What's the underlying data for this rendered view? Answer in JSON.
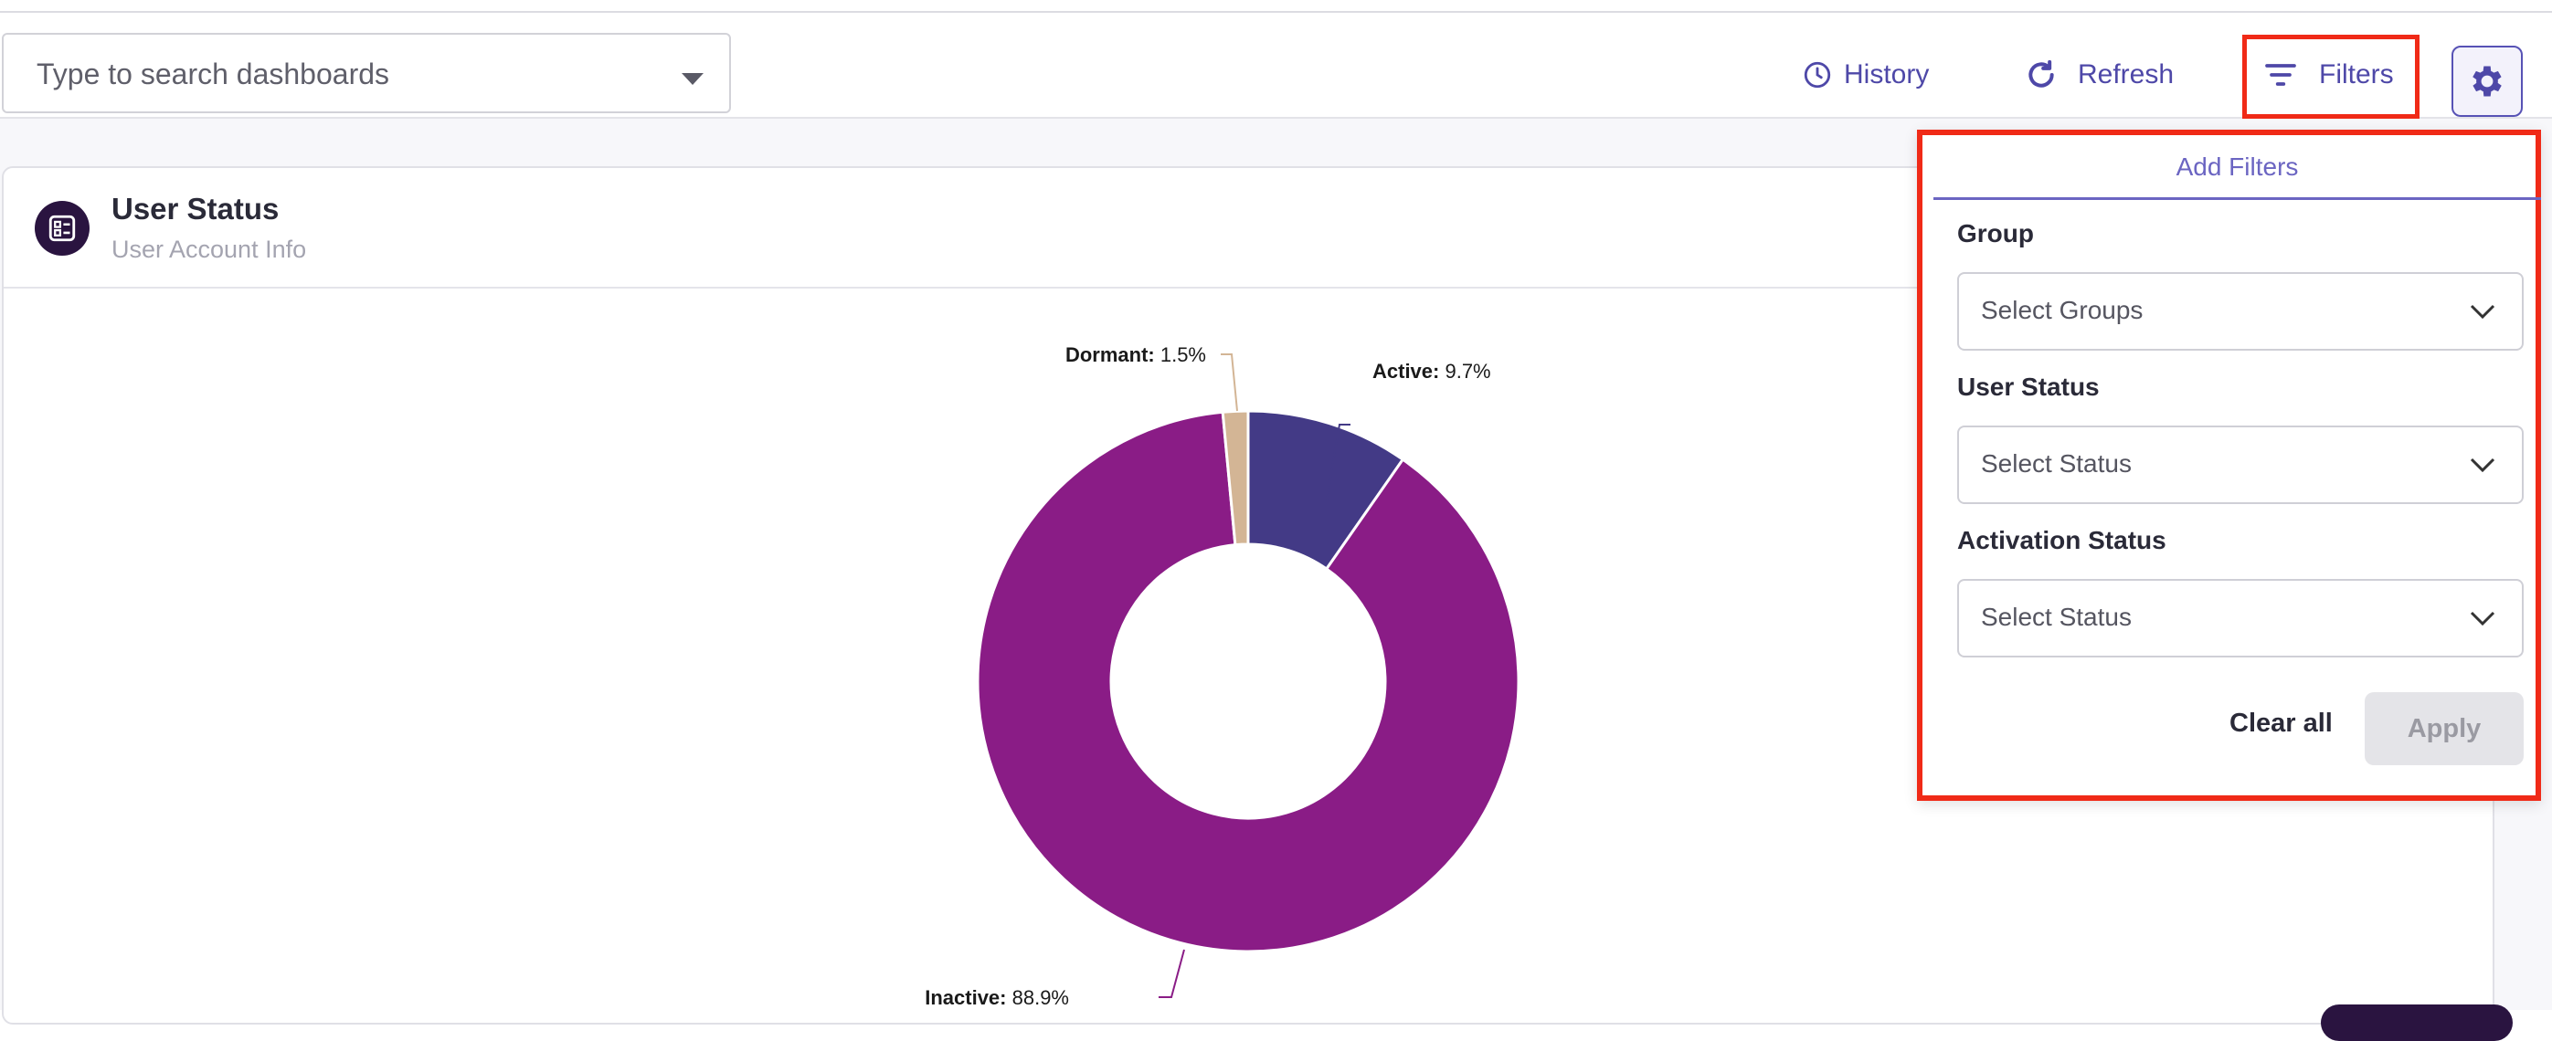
{
  "search": {
    "placeholder": "Type to search dashboards"
  },
  "toolbar": {
    "history_label": "History",
    "refresh_label": "Refresh",
    "filters_label": "Filters"
  },
  "colors": {
    "accent": "#4e48a8",
    "highlight": "#f02a17",
    "active": "#433a86",
    "inactive": "#8a1c86",
    "dormant": "#d3b595"
  },
  "card": {
    "title": "User Status",
    "subtitle": "User Account Info"
  },
  "chart_data": {
    "type": "pie",
    "categories": [
      "Active",
      "Inactive",
      "Dormant"
    ],
    "values": [
      9.7,
      88.9,
      1.5
    ],
    "unit": "%",
    "labels": [
      {
        "name": "Active:",
        "value": " 9.7%"
      },
      {
        "name": "Inactive:",
        "value": " 88.9%"
      },
      {
        "name": "Dormant:",
        "value": " 1.5%"
      }
    ]
  },
  "filters": {
    "tab_label": "Add Filters",
    "group_label": "Group",
    "group_placeholder": "Select Groups",
    "user_status_label": "User Status",
    "user_status_placeholder": "Select Status",
    "activation_label": "Activation Status",
    "activation_placeholder": "Select Status",
    "clear_label": "Clear all",
    "apply_label": "Apply"
  }
}
